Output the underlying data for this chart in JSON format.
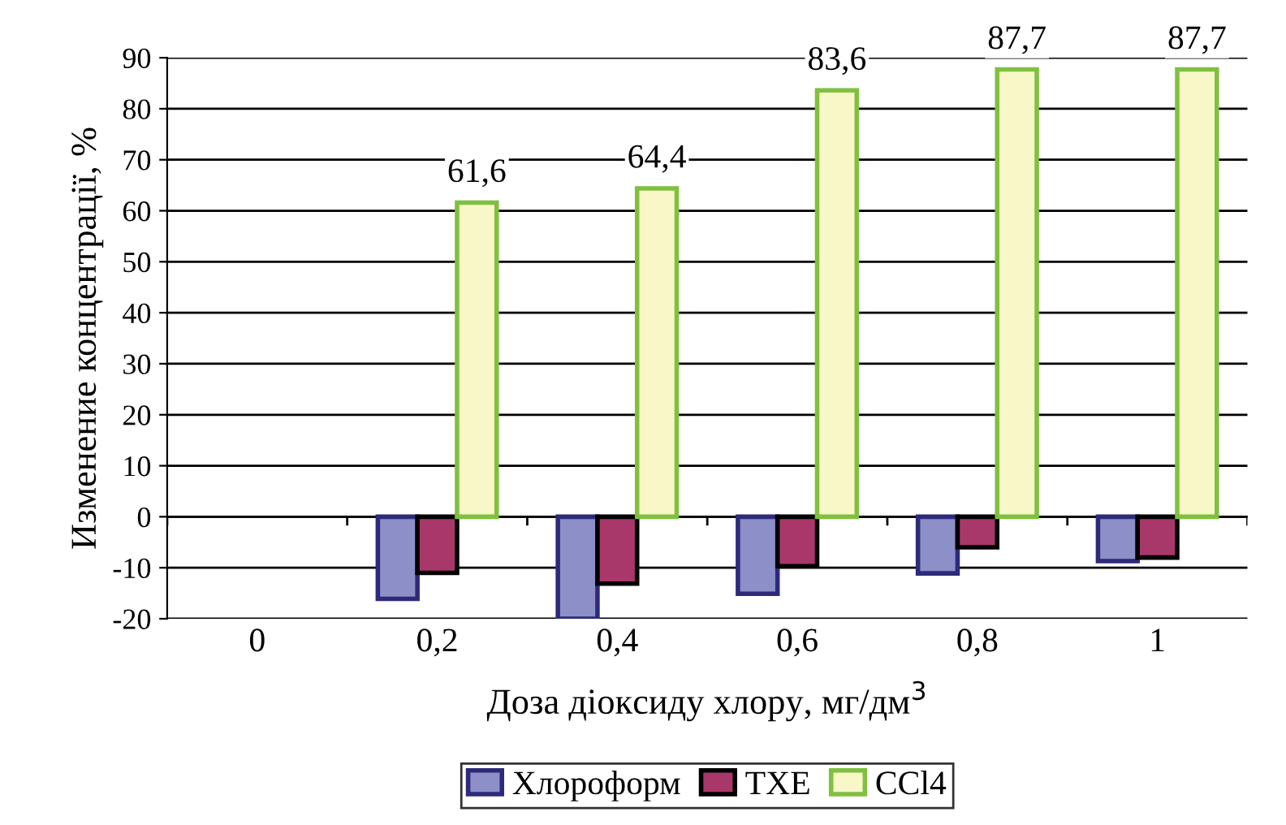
{
  "chart_data": {
    "type": "bar",
    "xlabel": "Доза діоксиду хлору, мг/дм$^{3}$",
    "ylabel": "Изменение концентрації, %",
    "categories": [
      "0",
      "0,2",
      "0,4",
      "0,6",
      "0,8",
      "1"
    ],
    "series": [
      {
        "name": "Хлороформ",
        "color": "#8c8fc8",
        "values": [
          null,
          -16.1,
          -20,
          -15.1,
          -11.1,
          -8.7
        ]
      },
      {
        "name": "ТХЕ",
        "color": "#a8386a",
        "values": [
          null,
          -11.0,
          -13.1,
          -9.7,
          -6.0,
          -8.0
        ]
      },
      {
        "name": "CCl4",
        "color": "#f8f7c8",
        "values": [
          null,
          61.6,
          64.4,
          83.6,
          87.7,
          87.7
        ],
        "value_labels": [
          null,
          "61,6",
          "64,4",
          "83,6",
          "87,7",
          "87,7"
        ]
      }
    ],
    "ylim": [
      -20,
      90
    ],
    "yticks": [
      -20,
      -10,
      0,
      10,
      20,
      30,
      40,
      50,
      60,
      70,
      80,
      90
    ],
    "grid": "y",
    "legend": "bottom"
  }
}
